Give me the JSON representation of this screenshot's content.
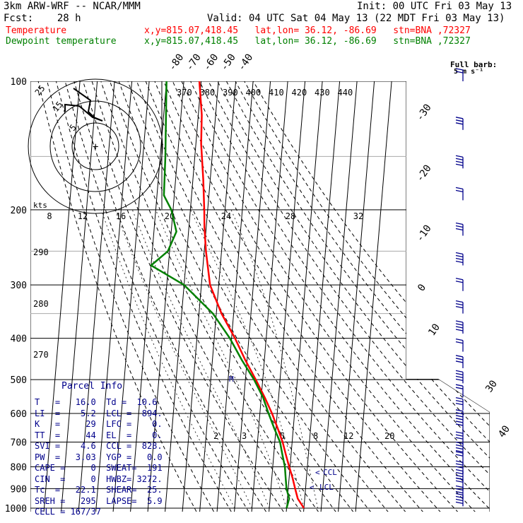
{
  "header": {
    "model": "3km ARW-WRF -- NCAR/MMM",
    "init": "Init: 00 UTC Fri 03 May 13",
    "fcst": "Fcst:    28 h",
    "valid": "Valid: 04 UTC Sat 04 May 13 (22 MDT Fri 03 May 13)",
    "temp_label": "Temperature",
    "dew_label": "Dewpoint temperature",
    "temp_info": "x,y=815.07,418.45   lat,lon= 36.12, -86.69   stn=BNA ,72327",
    "dew_info": "x,y=815.07,418.45   lat,lon= 36.12, -86.69   stn=BNA ,72327"
  },
  "colors": {
    "temperature": "#ff0000",
    "dewpoint": "#008000",
    "parcel_text": "#00008b",
    "wind": "#00008b"
  },
  "chart_data": {
    "type": "line",
    "skewt": {
      "pressure_levels": [
        100,
        200,
        300,
        400,
        500,
        600,
        700,
        800,
        900,
        1000
      ],
      "pressure_labels": [
        "100",
        "200",
        "300",
        "400",
        "500",
        "600",
        "700",
        "800",
        "900",
        "1000"
      ],
      "isotherm_labels_top": [
        "-80",
        "-70",
        "-60",
        "-50",
        "-40"
      ],
      "isotherm_labels_right": [
        "-30",
        "-20",
        "-10",
        "0",
        "10",
        "30",
        "40"
      ],
      "theta_e_labels": [
        "370",
        "380",
        "390",
        "400",
        "410",
        "420",
        "430",
        "440"
      ],
      "theta_labels": [
        "290",
        "280",
        "270"
      ],
      "mixing_ratio_labels": [
        "2",
        "3",
        "5",
        "8",
        "12",
        "20"
      ],
      "hodo_axis_labels": [
        "8",
        "12",
        "16",
        "20",
        "24",
        "28",
        "32"
      ],
      "hodo_units": "kts",
      "hodo_ring_labels": [
        "5",
        "15",
        "25"
      ],
      "series": [
        {
          "name": "Temperature",
          "points": [
            [
              100,
              -61
            ],
            [
              120,
              -58
            ],
            [
              140,
              -57
            ],
            [
              170,
              -54
            ],
            [
              200,
              -52
            ],
            [
              220,
              -51
            ],
            [
              250,
              -49
            ],
            [
              300,
              -45
            ],
            [
              350,
              -37
            ],
            [
              400,
              -28
            ],
            [
              450,
              -21
            ],
            [
              500,
              -14
            ],
            [
              550,
              -8
            ],
            [
              600,
              -3
            ],
            [
              650,
              1
            ],
            [
              700,
              4.5
            ],
            [
              750,
              7
            ],
            [
              800,
              9.5
            ],
            [
              850,
              12
            ],
            [
              900,
              14
            ],
            [
              950,
              16
            ],
            [
              1000,
              20
            ]
          ]
        },
        {
          "name": "Dewpoint temperature",
          "points": [
            [
              100,
              -80
            ],
            [
              150,
              -77
            ],
            [
              185,
              -76
            ],
            [
              200,
              -71
            ],
            [
              225,
              -67
            ],
            [
              250,
              -71
            ],
            [
              270,
              -80
            ],
            [
              300,
              -60
            ],
            [
              350,
              -42
            ],
            [
              400,
              -31
            ],
            [
              450,
              -23
            ],
            [
              500,
              -15
            ],
            [
              550,
              -9
            ],
            [
              600,
              -5
            ],
            [
              650,
              -1
            ],
            [
              700,
              3
            ],
            [
              750,
              5
            ],
            [
              800,
              7
            ],
            [
              850,
              8
            ],
            [
              900,
              9
            ],
            [
              950,
              11
            ],
            [
              1000,
              10
            ]
          ]
        }
      ],
      "ccl_label": "CCL",
      "lcl_label": "LCL",
      "wind_title": "Full barb:",
      "wind_unit": "5 m s⁻¹",
      "wind_barb_pressures": [
        100,
        130,
        160,
        190,
        230,
        270,
        310,
        350,
        390,
        430,
        470,
        510,
        550,
        590,
        630,
        670,
        710,
        750,
        790,
        830,
        870,
        910,
        950,
        990
      ]
    }
  },
  "parcel": {
    "title": "Parcel Info",
    "rows": [
      "T   =   16.0  Td =  10.6",
      "LI  =    5.2  LCL =  894.",
      "K   =     29  LFC =    0.",
      "TT  =     44  EL  =    0.",
      "SVI =    4.6  CCL =  828.",
      "PW  =   3.03  YGP =   0.0",
      "CAPE =     0  SWEAT=  191",
      "CIN  =     0  HWBZ= 3272.",
      "Tc  =   22.1  SHEAR=  25.",
      "SREH =   295  LAPSE=  5.9",
      "CELL = 167/37"
    ]
  }
}
